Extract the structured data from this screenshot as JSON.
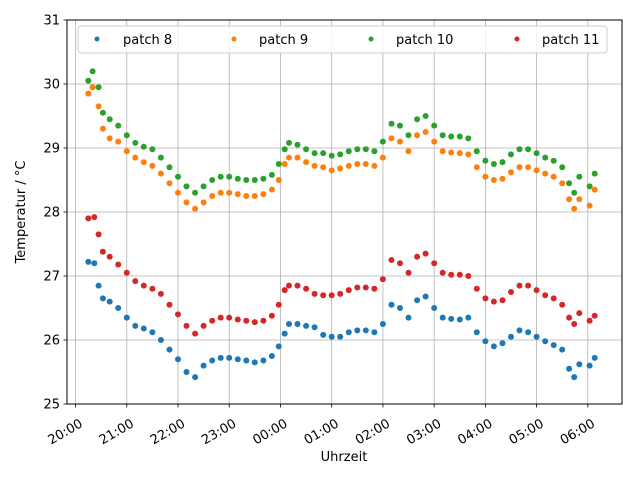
{
  "chart_data": {
    "type": "scatter",
    "xlabel": "Uhrzeit",
    "ylabel": "Temperatur / °C",
    "ylim": [
      25,
      31
    ],
    "xlim": [
      "19:50",
      "06:40"
    ],
    "y_ticks": [
      "25",
      "26",
      "27",
      "28",
      "29",
      "30",
      "31"
    ],
    "x_ticks": [
      "20:00",
      "21:00",
      "22:00",
      "23:00",
      "00:00",
      "01:00",
      "02:00",
      "03:00",
      "04:00",
      "05:00",
      "06:00"
    ],
    "grid": true,
    "legend_position": "top",
    "series": [
      {
        "name": "patch 8",
        "color": "#1f77b4",
        "points": [
          [
            "20:15",
            27.22
          ],
          [
            "20:22",
            27.2
          ],
          [
            "20:27",
            26.85
          ],
          [
            "20:32",
            26.65
          ],
          [
            "20:40",
            26.6
          ],
          [
            "20:50",
            26.5
          ],
          [
            "21:00",
            26.35
          ],
          [
            "21:10",
            26.22
          ],
          [
            "21:20",
            26.18
          ],
          [
            "21:30",
            26.12
          ],
          [
            "21:40",
            26.0
          ],
          [
            "21:50",
            25.85
          ],
          [
            "22:00",
            25.7
          ],
          [
            "22:10",
            25.5
          ],
          [
            "22:20",
            25.42
          ],
          [
            "22:30",
            25.6
          ],
          [
            "22:40",
            25.68
          ],
          [
            "22:50",
            25.72
          ],
          [
            "23:00",
            25.72
          ],
          [
            "23:10",
            25.7
          ],
          [
            "23:20",
            25.68
          ],
          [
            "23:30",
            25.65
          ],
          [
            "23:40",
            25.68
          ],
          [
            "23:50",
            25.75
          ],
          [
            "23:58",
            25.9
          ],
          [
            "00:05",
            26.1
          ],
          [
            "00:10",
            26.25
          ],
          [
            "00:20",
            26.25
          ],
          [
            "00:30",
            26.22
          ],
          [
            "00:40",
            26.2
          ],
          [
            "00:50",
            26.08
          ],
          [
            "01:00",
            26.05
          ],
          [
            "01:10",
            26.05
          ],
          [
            "01:20",
            26.12
          ],
          [
            "01:30",
            26.15
          ],
          [
            "01:40",
            26.15
          ],
          [
            "01:50",
            26.12
          ],
          [
            "02:00",
            26.25
          ],
          [
            "02:10",
            26.55
          ],
          [
            "02:20",
            26.5
          ],
          [
            "02:30",
            26.35
          ],
          [
            "02:40",
            26.62
          ],
          [
            "02:50",
            26.68
          ],
          [
            "03:00",
            26.5
          ],
          [
            "03:10",
            26.35
          ],
          [
            "03:20",
            26.33
          ],
          [
            "03:30",
            26.32
          ],
          [
            "03:40",
            26.35
          ],
          [
            "03:50",
            26.12
          ],
          [
            "04:00",
            25.98
          ],
          [
            "04:10",
            25.9
          ],
          [
            "04:20",
            25.95
          ],
          [
            "04:30",
            26.05
          ],
          [
            "04:40",
            26.15
          ],
          [
            "04:50",
            26.12
          ],
          [
            "05:00",
            26.05
          ],
          [
            "05:10",
            25.98
          ],
          [
            "05:20",
            25.92
          ],
          [
            "05:30",
            25.85
          ],
          [
            "05:38",
            25.55
          ],
          [
            "05:44",
            25.42
          ],
          [
            "05:50",
            25.62
          ],
          [
            "06:02",
            25.6
          ],
          [
            "06:08",
            25.72
          ]
        ]
      },
      {
        "name": "patch 9",
        "color": "#ff7f0e",
        "points": [
          [
            "20:15",
            29.85
          ],
          [
            "20:20",
            29.95
          ],
          [
            "20:27",
            29.65
          ],
          [
            "20:32",
            29.3
          ],
          [
            "20:40",
            29.15
          ],
          [
            "20:50",
            29.1
          ],
          [
            "21:00",
            28.95
          ],
          [
            "21:10",
            28.85
          ],
          [
            "21:20",
            28.78
          ],
          [
            "21:30",
            28.72
          ],
          [
            "21:40",
            28.6
          ],
          [
            "21:50",
            28.45
          ],
          [
            "22:00",
            28.3
          ],
          [
            "22:10",
            28.15
          ],
          [
            "22:20",
            28.05
          ],
          [
            "22:30",
            28.15
          ],
          [
            "22:40",
            28.25
          ],
          [
            "22:50",
            28.3
          ],
          [
            "23:00",
            28.3
          ],
          [
            "23:10",
            28.28
          ],
          [
            "23:20",
            28.25
          ],
          [
            "23:30",
            28.25
          ],
          [
            "23:40",
            28.28
          ],
          [
            "23:50",
            28.35
          ],
          [
            "23:58",
            28.5
          ],
          [
            "00:05",
            28.75
          ],
          [
            "00:10",
            28.85
          ],
          [
            "00:20",
            28.85
          ],
          [
            "00:30",
            28.78
          ],
          [
            "00:40",
            28.72
          ],
          [
            "00:50",
            28.7
          ],
          [
            "01:00",
            28.65
          ],
          [
            "01:10",
            28.68
          ],
          [
            "01:20",
            28.72
          ],
          [
            "01:30",
            28.75
          ],
          [
            "01:40",
            28.75
          ],
          [
            "01:50",
            28.72
          ],
          [
            "02:00",
            28.85
          ],
          [
            "02:10",
            29.15
          ],
          [
            "02:20",
            29.1
          ],
          [
            "02:30",
            28.95
          ],
          [
            "02:40",
            29.2
          ],
          [
            "02:50",
            29.25
          ],
          [
            "03:00",
            29.1
          ],
          [
            "03:10",
            28.95
          ],
          [
            "03:20",
            28.93
          ],
          [
            "03:30",
            28.92
          ],
          [
            "03:40",
            28.9
          ],
          [
            "03:50",
            28.7
          ],
          [
            "04:00",
            28.55
          ],
          [
            "04:10",
            28.5
          ],
          [
            "04:20",
            28.52
          ],
          [
            "04:30",
            28.62
          ],
          [
            "04:40",
            28.7
          ],
          [
            "04:50",
            28.7
          ],
          [
            "05:00",
            28.65
          ],
          [
            "05:10",
            28.6
          ],
          [
            "05:20",
            28.55
          ],
          [
            "05:30",
            28.45
          ],
          [
            "05:38",
            28.2
          ],
          [
            "05:44",
            28.05
          ],
          [
            "05:50",
            28.2
          ],
          [
            "06:02",
            28.1
          ],
          [
            "06:08",
            28.35
          ]
        ]
      },
      {
        "name": "patch 10",
        "color": "#2ca02c",
        "points": [
          [
            "20:15",
            30.05
          ],
          [
            "20:20",
            30.2
          ],
          [
            "20:27",
            29.95
          ],
          [
            "20:32",
            29.55
          ],
          [
            "20:40",
            29.45
          ],
          [
            "20:50",
            29.35
          ],
          [
            "21:00",
            29.2
          ],
          [
            "21:10",
            29.08
          ],
          [
            "21:20",
            29.02
          ],
          [
            "21:30",
            28.98
          ],
          [
            "21:40",
            28.85
          ],
          [
            "21:50",
            28.7
          ],
          [
            "22:00",
            28.55
          ],
          [
            "22:10",
            28.4
          ],
          [
            "22:20",
            28.3
          ],
          [
            "22:30",
            28.4
          ],
          [
            "22:40",
            28.5
          ],
          [
            "22:50",
            28.55
          ],
          [
            "23:00",
            28.55
          ],
          [
            "23:10",
            28.52
          ],
          [
            "23:20",
            28.5
          ],
          [
            "23:30",
            28.5
          ],
          [
            "23:40",
            28.52
          ],
          [
            "23:50",
            28.58
          ],
          [
            "23:58",
            28.75
          ],
          [
            "00:05",
            28.98
          ],
          [
            "00:10",
            29.08
          ],
          [
            "00:20",
            29.05
          ],
          [
            "00:30",
            28.98
          ],
          [
            "00:40",
            28.92
          ],
          [
            "00:50",
            28.92
          ],
          [
            "01:00",
            28.88
          ],
          [
            "01:10",
            28.9
          ],
          [
            "01:20",
            28.95
          ],
          [
            "01:30",
            28.98
          ],
          [
            "01:40",
            28.98
          ],
          [
            "01:50",
            28.95
          ],
          [
            "02:00",
            29.1
          ],
          [
            "02:10",
            29.38
          ],
          [
            "02:20",
            29.35
          ],
          [
            "02:30",
            29.2
          ],
          [
            "02:40",
            29.45
          ],
          [
            "02:50",
            29.5
          ],
          [
            "03:00",
            29.35
          ],
          [
            "03:10",
            29.2
          ],
          [
            "03:20",
            29.18
          ],
          [
            "03:30",
            29.18
          ],
          [
            "03:40",
            29.15
          ],
          [
            "03:50",
            28.95
          ],
          [
            "04:00",
            28.8
          ],
          [
            "04:10",
            28.75
          ],
          [
            "04:20",
            28.78
          ],
          [
            "04:30",
            28.9
          ],
          [
            "04:40",
            28.98
          ],
          [
            "04:50",
            28.98
          ],
          [
            "05:00",
            28.92
          ],
          [
            "05:10",
            28.85
          ],
          [
            "05:20",
            28.8
          ],
          [
            "05:30",
            28.7
          ],
          [
            "05:38",
            28.45
          ],
          [
            "05:44",
            28.3
          ],
          [
            "05:50",
            28.55
          ],
          [
            "06:02",
            28.4
          ],
          [
            "06:08",
            28.6
          ]
        ]
      },
      {
        "name": "patch 11",
        "color": "#d62728",
        "points": [
          [
            "20:15",
            27.9
          ],
          [
            "20:22",
            27.92
          ],
          [
            "20:27",
            27.65
          ],
          [
            "20:32",
            27.38
          ],
          [
            "20:40",
            27.3
          ],
          [
            "20:50",
            27.18
          ],
          [
            "21:00",
            27.05
          ],
          [
            "21:10",
            26.92
          ],
          [
            "21:20",
            26.85
          ],
          [
            "21:30",
            26.8
          ],
          [
            "21:40",
            26.72
          ],
          [
            "21:50",
            26.55
          ],
          [
            "22:00",
            26.4
          ],
          [
            "22:10",
            26.22
          ],
          [
            "22:20",
            26.1
          ],
          [
            "22:30",
            26.22
          ],
          [
            "22:40",
            26.3
          ],
          [
            "22:50",
            26.35
          ],
          [
            "23:00",
            26.35
          ],
          [
            "23:10",
            26.32
          ],
          [
            "23:20",
            26.3
          ],
          [
            "23:30",
            26.28
          ],
          [
            "23:40",
            26.3
          ],
          [
            "23:50",
            26.38
          ],
          [
            "23:58",
            26.55
          ],
          [
            "00:05",
            26.78
          ],
          [
            "00:10",
            26.85
          ],
          [
            "00:20",
            26.85
          ],
          [
            "00:30",
            26.8
          ],
          [
            "00:40",
            26.72
          ],
          [
            "00:50",
            26.7
          ],
          [
            "01:00",
            26.7
          ],
          [
            "01:10",
            26.72
          ],
          [
            "01:20",
            26.78
          ],
          [
            "01:30",
            26.82
          ],
          [
            "01:40",
            26.82
          ],
          [
            "01:50",
            26.8
          ],
          [
            "02:00",
            26.95
          ],
          [
            "02:10",
            27.25
          ],
          [
            "02:20",
            27.2
          ],
          [
            "02:30",
            27.05
          ],
          [
            "02:40",
            27.3
          ],
          [
            "02:50",
            27.35
          ],
          [
            "03:00",
            27.2
          ],
          [
            "03:10",
            27.05
          ],
          [
            "03:20",
            27.02
          ],
          [
            "03:30",
            27.02
          ],
          [
            "03:40",
            27.0
          ],
          [
            "03:50",
            26.8
          ],
          [
            "04:00",
            26.65
          ],
          [
            "04:10",
            26.6
          ],
          [
            "04:20",
            26.62
          ],
          [
            "04:30",
            26.75
          ],
          [
            "04:40",
            26.85
          ],
          [
            "04:50",
            26.85
          ],
          [
            "05:00",
            26.78
          ],
          [
            "05:10",
            26.7
          ],
          [
            "05:20",
            26.65
          ],
          [
            "05:30",
            26.55
          ],
          [
            "05:38",
            26.35
          ],
          [
            "05:44",
            26.25
          ],
          [
            "05:50",
            26.42
          ],
          [
            "06:02",
            26.3
          ],
          [
            "06:08",
            26.38
          ]
        ]
      }
    ]
  }
}
